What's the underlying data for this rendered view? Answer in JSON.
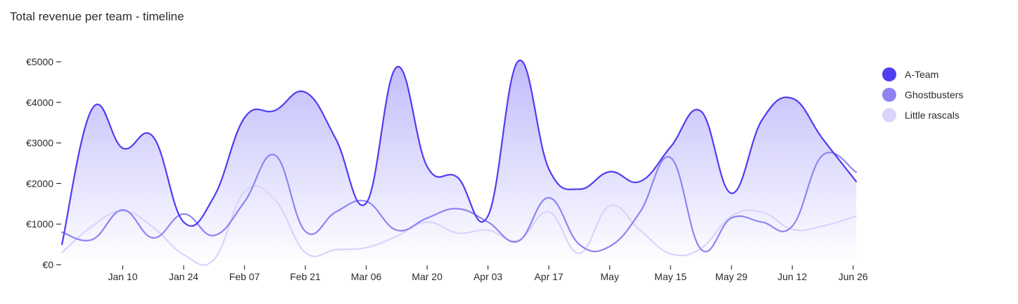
{
  "chart_data": {
    "type": "area",
    "title": "Total revenue per team - timeline",
    "xlabel": "",
    "ylabel": "",
    "ylim": [
      0,
      5000
    ],
    "y_ticks": [
      0,
      1000,
      2000,
      3000,
      4000,
      5000
    ],
    "y_tick_labels": [
      "€0",
      "€1000",
      "€2000",
      "€3000",
      "€4000",
      "€5000"
    ],
    "x_ticks": [
      {
        "label": "Jan 10",
        "x": 4.0
      },
      {
        "label": "Jan 24",
        "x": 6.0
      },
      {
        "label": "Feb 07",
        "x": 8.0
      },
      {
        "label": "Feb 21",
        "x": 10.0
      },
      {
        "label": "Mar 06",
        "x": 12.0
      },
      {
        "label": "Mar 20",
        "x": 14.0
      },
      {
        "label": "Apr 03",
        "x": 16.0
      },
      {
        "label": "Apr 17",
        "x": 18.0
      },
      {
        "label": "May",
        "x": 20.0
      },
      {
        "label": "May 15",
        "x": 22.0
      },
      {
        "label": "May 29",
        "x": 24.0
      },
      {
        "label": "Jun 12",
        "x": 26.0
      },
      {
        "label": "Jun 26",
        "x": 28.0
      }
    ],
    "x_domain": [
      2.0,
      28.1
    ],
    "legend_position": "right",
    "grid": false,
    "series": [
      {
        "name": "A-Team",
        "color": "#4f3df0",
        "fill": true,
        "points": [
          [
            2.0,
            500
          ],
          [
            3.0,
            3850
          ],
          [
            4.0,
            2870
          ],
          [
            5.0,
            3150
          ],
          [
            6.0,
            1050
          ],
          [
            7.0,
            1680
          ],
          [
            8.0,
            3620
          ],
          [
            9.0,
            3800
          ],
          [
            10.0,
            4250
          ],
          [
            11.0,
            3100
          ],
          [
            12.0,
            1520
          ],
          [
            13.0,
            4870
          ],
          [
            14.0,
            2420
          ],
          [
            15.0,
            2150
          ],
          [
            16.0,
            1200
          ],
          [
            17.0,
            5020
          ],
          [
            18.0,
            2360
          ],
          [
            19.0,
            1860
          ],
          [
            20.0,
            2290
          ],
          [
            21.0,
            2050
          ],
          [
            22.0,
            2900
          ],
          [
            23.0,
            3780
          ],
          [
            24.0,
            1760
          ],
          [
            25.0,
            3560
          ],
          [
            26.0,
            4100
          ],
          [
            27.0,
            3100
          ],
          [
            28.1,
            2050
          ]
        ]
      },
      {
        "name": "Ghostbusters",
        "color": "#8f84f2",
        "fill": false,
        "points": [
          [
            2.0,
            800
          ],
          [
            3.0,
            620
          ],
          [
            4.0,
            1350
          ],
          [
            5.0,
            660
          ],
          [
            6.0,
            1250
          ],
          [
            7.0,
            720
          ],
          [
            8.0,
            1550
          ],
          [
            9.0,
            2700
          ],
          [
            10.0,
            820
          ],
          [
            11.0,
            1300
          ],
          [
            12.0,
            1560
          ],
          [
            13.0,
            850
          ],
          [
            14.0,
            1150
          ],
          [
            15.0,
            1380
          ],
          [
            16.0,
            1050
          ],
          [
            17.0,
            580
          ],
          [
            18.0,
            1650
          ],
          [
            19.0,
            500
          ],
          [
            20.0,
            450
          ],
          [
            21.0,
            1300
          ],
          [
            22.0,
            2640
          ],
          [
            23.0,
            380
          ],
          [
            24.0,
            1150
          ],
          [
            25.0,
            1050
          ],
          [
            26.0,
            950
          ],
          [
            27.0,
            2700
          ],
          [
            28.1,
            2280
          ]
        ]
      },
      {
        "name": "Little rascals",
        "color": "#d8d4fb",
        "fill": false,
        "points": [
          [
            2.0,
            300
          ],
          [
            3.0,
            950
          ],
          [
            4.0,
            1330
          ],
          [
            5.0,
            920
          ],
          [
            6.0,
            250
          ],
          [
            7.0,
            130
          ],
          [
            8.0,
            1800
          ],
          [
            9.0,
            1600
          ],
          [
            10.0,
            300
          ],
          [
            11.0,
            370
          ],
          [
            12.0,
            420
          ],
          [
            13.0,
            700
          ],
          [
            14.0,
            1050
          ],
          [
            15.0,
            780
          ],
          [
            16.0,
            850
          ],
          [
            17.0,
            600
          ],
          [
            18.0,
            1300
          ],
          [
            19.0,
            280
          ],
          [
            20.0,
            1450
          ],
          [
            21.0,
            850
          ],
          [
            22.0,
            270
          ],
          [
            23.0,
            400
          ],
          [
            24.0,
            1200
          ],
          [
            25.0,
            1300
          ],
          [
            26.0,
            870
          ],
          [
            27.0,
            950
          ],
          [
            28.1,
            1200
          ]
        ]
      }
    ]
  }
}
